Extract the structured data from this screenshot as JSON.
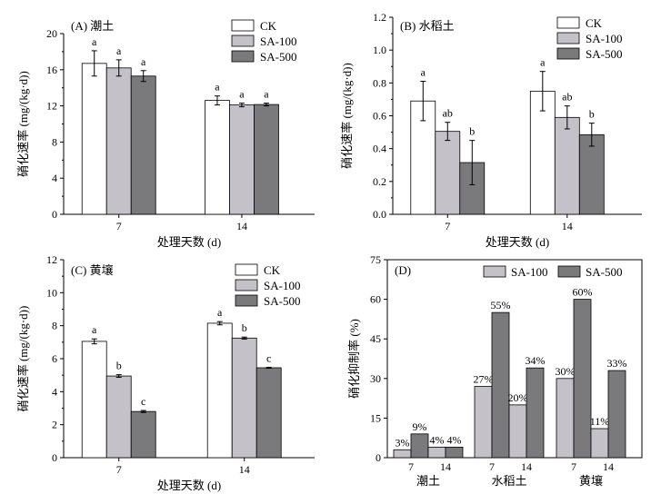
{
  "colors": {
    "CK": "#ffffff",
    "SA-100": "#c4c1c8",
    "SA-500": "#7a7a7c"
  },
  "chart_data": [
    {
      "type": "bar",
      "panel": "A",
      "title": "(A) 潮土",
      "xlabel": "处理天数 (d)",
      "ylabel": "硝化速率 (mg/(kg·d))",
      "ylim": [
        0,
        20
      ],
      "yticks": [
        0,
        4,
        8,
        12,
        16,
        20
      ],
      "categories": [
        "7",
        "14"
      ],
      "legend": "top-right",
      "series": [
        {
          "name": "CK",
          "values": [
            16.7,
            12.6
          ],
          "errors": [
            1.4,
            0.5
          ],
          "letters": [
            "a",
            "a"
          ]
        },
        {
          "name": "SA-100",
          "values": [
            16.2,
            12.1
          ],
          "errors": [
            0.9,
            0.2
          ],
          "letters": [
            "a",
            "a"
          ]
        },
        {
          "name": "SA-500",
          "values": [
            15.3,
            12.15
          ],
          "errors": [
            0.6,
            0.15
          ],
          "letters": [
            "a",
            "a"
          ]
        }
      ]
    },
    {
      "type": "bar",
      "panel": "B",
      "title": "(B) 水稻土",
      "xlabel": "处理天数 (d)",
      "ylabel": "硝化速率 (mg/(kg·d))",
      "ylim": [
        0,
        1.2
      ],
      "yticks": [
        0.0,
        0.2,
        0.4,
        0.6,
        0.8,
        1.0,
        1.2
      ],
      "categories": [
        "7",
        "14"
      ],
      "legend": "top-right",
      "series": [
        {
          "name": "CK",
          "values": [
            0.69,
            0.75
          ],
          "errors": [
            0.12,
            0.12
          ],
          "letters": [
            "a",
            "a"
          ]
        },
        {
          "name": "SA-100",
          "values": [
            0.505,
            0.59
          ],
          "errors": [
            0.055,
            0.07
          ],
          "letters": [
            "ab",
            "ab"
          ]
        },
        {
          "name": "SA-500",
          "values": [
            0.315,
            0.485
          ],
          "errors": [
            0.135,
            0.07
          ],
          "letters": [
            "b",
            "b"
          ]
        }
      ]
    },
    {
      "type": "bar",
      "panel": "C",
      "title": "(C) 黄壤",
      "xlabel": "处理天数 (d)",
      "ylabel": "硝化速率 (mg/(kg·d))",
      "ylim": [
        0,
        12
      ],
      "yticks": [
        0,
        2,
        4,
        6,
        8,
        10,
        12
      ],
      "categories": [
        "7",
        "14"
      ],
      "legend": "top-right",
      "series": [
        {
          "name": "CK",
          "values": [
            7.05,
            8.15
          ],
          "errors": [
            0.15,
            0.1
          ],
          "letters": [
            "a",
            "a"
          ]
        },
        {
          "name": "SA-100",
          "values": [
            4.95,
            7.25
          ],
          "errors": [
            0.08,
            0.06
          ],
          "letters": [
            "b",
            "b"
          ]
        },
        {
          "name": "SA-500",
          "values": [
            2.8,
            5.45
          ],
          "errors": [
            0.06,
            0.03
          ],
          "letters": [
            "c",
            "c"
          ]
        }
      ]
    },
    {
      "type": "bar",
      "panel": "D",
      "title": "(D)",
      "xlabel": "",
      "ylabel": "硝化抑制率 (%)",
      "ylim": [
        0,
        75
      ],
      "yticks": [
        0,
        15,
        30,
        45,
        60,
        75
      ],
      "legend": "top-right",
      "groups": [
        "潮土",
        "水稻土",
        "黄壤"
      ],
      "categories": [
        "7",
        "14"
      ],
      "series": [
        {
          "name": "SA-100",
          "values": [
            [
              3,
              4
            ],
            [
              27,
              20
            ],
            [
              30,
              11
            ]
          ],
          "labels": [
            [
              "3%",
              "4%"
            ],
            [
              "27%",
              "20%"
            ],
            [
              "30%",
              "11%"
            ]
          ]
        },
        {
          "name": "SA-500",
          "values": [
            [
              9,
              4
            ],
            [
              55,
              34
            ],
            [
              60,
              33
            ]
          ],
          "labels": [
            [
              "9%",
              "4%"
            ],
            [
              "55%",
              "34%"
            ],
            [
              "60%",
              "33%"
            ]
          ]
        }
      ]
    }
  ]
}
